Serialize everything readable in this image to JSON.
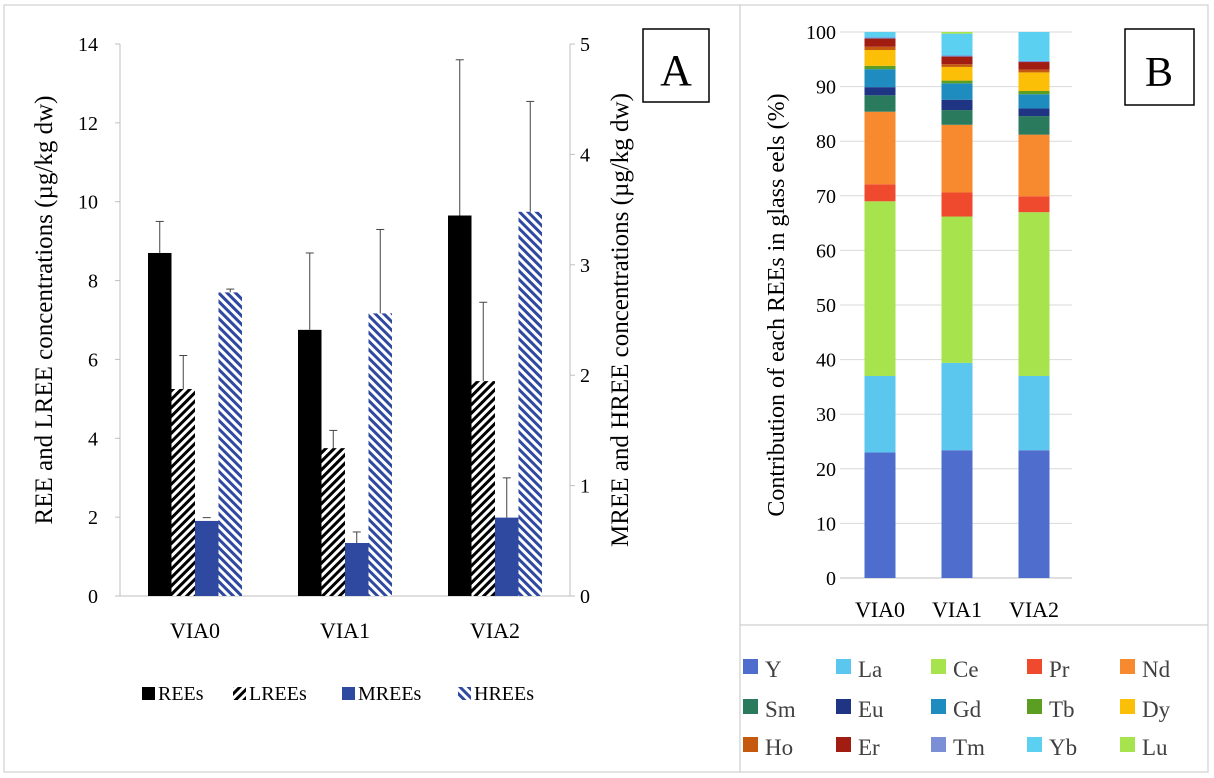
{
  "colors": {
    "rees": "#000000",
    "mrees": "#2f48a0",
    "hrees_stripe": "#2f48a0",
    "Y": "#4f6dcc",
    "La": "#5bc6ee",
    "Ce": "#a6e34d",
    "Pr": "#ef4a2d",
    "Nd": "#f7892f",
    "Sm": "#2a7a5e",
    "Eu": "#1f3584",
    "Gd": "#1e8cbf",
    "Tb": "#5c9e22",
    "Dy": "#fbbf07",
    "Ho": "#c55a0f",
    "Er": "#a11d12",
    "Tm": "#7b8fd6",
    "Yb": "#5bd0f0",
    "Lu": "#a6e34d"
  },
  "chart_data": [
    {
      "type": "bar",
      "panel_label": "A",
      "categories": [
        "VIA0",
        "VIA1",
        "VIA2"
      ],
      "ylabel": "REE and LREE concentrations (µg/kg dw)",
      "y2label": "MREE and HREE concentrations (µg/kg dw)",
      "ylim": [
        0,
        14
      ],
      "y2lim": [
        0,
        5
      ],
      "yticks": [
        "0",
        "2",
        "4",
        "6",
        "8",
        "10",
        "12",
        "14"
      ],
      "y2ticks": [
        "0",
        "1",
        "2",
        "3",
        "4",
        "5"
      ],
      "legend_position": "bottom",
      "series": [
        {
          "name": "REEs",
          "axis": "left",
          "pattern": "solid-black",
          "values": [
            8.7,
            6.75,
            9.65
          ],
          "errors": [
            0.8,
            1.95,
            3.95
          ]
        },
        {
          "name": "LREEs",
          "axis": "left",
          "pattern": "black-diagonal-hatch",
          "values": [
            5.25,
            3.75,
            5.45
          ],
          "errors": [
            0.85,
            0.45,
            2.0
          ]
        },
        {
          "name": "MREEs",
          "axis": "right",
          "pattern": "solid-blue",
          "values": [
            0.68,
            0.48,
            0.71
          ],
          "errors": [
            0.0,
            0.1,
            0.36
          ]
        },
        {
          "name": "HREEs",
          "axis": "right",
          "pattern": "blue-diagonal-stripe",
          "values": [
            2.75,
            2.56,
            3.48
          ],
          "errors": [
            0.03,
            0.76,
            1.0
          ]
        }
      ]
    },
    {
      "type": "bar",
      "stacked": true,
      "panel_label": "B",
      "categories": [
        "VIA0",
        "VIA1",
        "VIA2"
      ],
      "ylabel": "Contribution of each REEs in glass eels (%)",
      "ylim": [
        0,
        100
      ],
      "yticks": [
        "0",
        "10",
        "20",
        "30",
        "40",
        "50",
        "60",
        "70",
        "80",
        "90",
        "100"
      ],
      "grid": true,
      "legend_position": "bottom",
      "series": [
        {
          "name": "Y",
          "values": [
            23.0,
            23.4,
            23.4
          ]
        },
        {
          "name": "La",
          "values": [
            14.0,
            16.0,
            13.6
          ]
        },
        {
          "name": "Ce",
          "values": [
            32.0,
            26.8,
            30.0
          ]
        },
        {
          "name": "Pr",
          "values": [
            3.1,
            4.4,
            2.9
          ]
        },
        {
          "name": "Nd",
          "values": [
            13.3,
            12.4,
            11.3
          ]
        },
        {
          "name": "Sm",
          "values": [
            3.0,
            2.7,
            3.4
          ]
        },
        {
          "name": "Eu",
          "values": [
            1.5,
            1.9,
            1.4
          ]
        },
        {
          "name": "Gd",
          "values": [
            3.3,
            3.0,
            2.6
          ]
        },
        {
          "name": "Tb",
          "values": [
            0.6,
            0.5,
            0.6
          ]
        },
        {
          "name": "Dy",
          "values": [
            2.9,
            2.5,
            3.4
          ]
        },
        {
          "name": "Ho",
          "values": [
            0.6,
            0.5,
            0.5
          ]
        },
        {
          "name": "Er",
          "values": [
            1.5,
            1.4,
            1.4
          ]
        },
        {
          "name": "Tm",
          "values": [
            0.2,
            0.2,
            0.2
          ]
        },
        {
          "name": "Yb",
          "values": [
            1.0,
            4.0,
            5.3
          ]
        },
        {
          "name": "Lu",
          "values": [
            0.0,
            0.3,
            0.0
          ]
        }
      ]
    }
  ]
}
